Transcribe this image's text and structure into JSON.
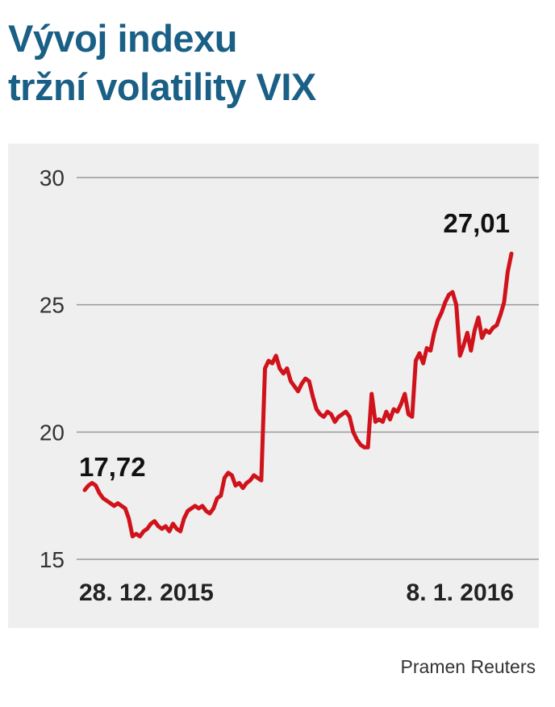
{
  "title_lines": [
    "Vývoj indexu",
    "tržní volatility VIX"
  ],
  "source": "Pramen Reuters",
  "colors": {
    "title": "#1a5f85",
    "line": "#d0121b",
    "panel": "#efefef",
    "grid": "#999999"
  },
  "chart_data": {
    "type": "line",
    "title": "Vývoj indexu tržní volatility VIX",
    "xlabel": "",
    "ylabel": "",
    "ylim": [
      15,
      30
    ],
    "yticks": [
      30,
      25,
      20,
      15
    ],
    "grid": true,
    "x_labels": [
      "28. 12. 2015",
      "8. 1. 2016"
    ],
    "start_label": "17,72",
    "end_label": "27,01",
    "series": [
      {
        "values": [
          17.72,
          17.9,
          18.0,
          17.9,
          17.6,
          17.4,
          17.3,
          17.2,
          17.1,
          17.2,
          17.1,
          17.0,
          16.6,
          15.9,
          16.0,
          15.9,
          16.1,
          16.2,
          16.4,
          16.5,
          16.3,
          16.2,
          16.3,
          16.1,
          16.4,
          16.2,
          16.1,
          16.6,
          16.9,
          17.0,
          17.1,
          17.0,
          17.1,
          16.9,
          16.8,
          17.0,
          17.4,
          17.5,
          18.2,
          18.4,
          18.3,
          17.9,
          18.0,
          17.8,
          18.0,
          18.1,
          18.3,
          18.2,
          18.1,
          22.5,
          22.8,
          22.7,
          23.0,
          22.5,
          22.3,
          22.5,
          22.0,
          21.8,
          21.6,
          21.9,
          22.1,
          22.0,
          21.4,
          20.9,
          20.7,
          20.6,
          20.8,
          20.7,
          20.4,
          20.6,
          20.7,
          20.8,
          20.6,
          20.0,
          19.7,
          19.5,
          19.4,
          19.4,
          21.5,
          20.4,
          20.5,
          20.4,
          20.8,
          20.5,
          20.9,
          20.8,
          21.1,
          21.5,
          20.7,
          20.6,
          22.8,
          23.1,
          22.7,
          23.3,
          23.2,
          23.9,
          24.4,
          24.7,
          25.1,
          25.4,
          25.5,
          25.0,
          23.0,
          23.4,
          23.9,
          23.2,
          24.0,
          24.5,
          23.7,
          24.0,
          23.9,
          24.1,
          24.2,
          24.6,
          25.1,
          26.3,
          27.01
        ]
      }
    ]
  }
}
